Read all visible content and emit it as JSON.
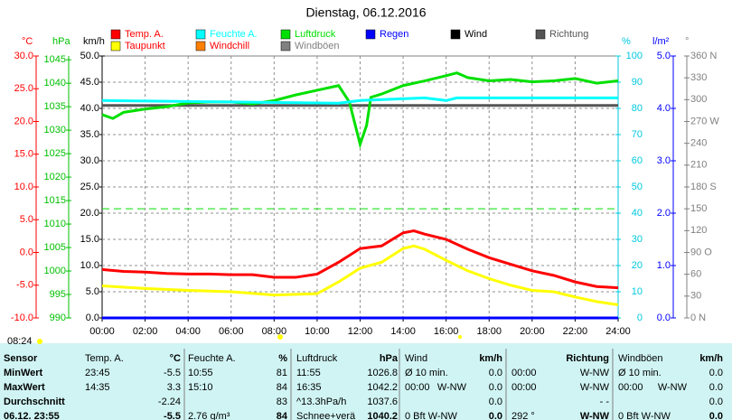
{
  "chart_data": {
    "type": "line",
    "title": "Dienstag, 06.12.2016",
    "xlim": [
      0,
      24
    ],
    "xticks": [
      {
        "value": 0,
        "label": "00:00"
      },
      {
        "value": 2,
        "label": "02:00"
      },
      {
        "value": 4,
        "label": "04:00"
      },
      {
        "value": 6,
        "label": "06:00"
      },
      {
        "value": 8,
        "label": "08:00"
      },
      {
        "value": 10,
        "label": "10:00"
      },
      {
        "value": 12,
        "label": "12:00"
      },
      {
        "value": 14,
        "label": "14:00"
      },
      {
        "value": 16,
        "label": "16:00"
      },
      {
        "value": 18,
        "label": "18:00"
      },
      {
        "value": 20,
        "label": "20:00"
      },
      {
        "value": 22,
        "label": "22:00"
      },
      {
        "value": 24,
        "label": "24:00"
      }
    ],
    "grid": true,
    "axes": [
      {
        "label": "°C",
        "color": "#ff0000",
        "lim": [
          -10,
          30
        ],
        "ticks": [
          {
            "value": 30,
            "label": "30.0"
          },
          {
            "value": 25,
            "label": "25.0"
          },
          {
            "value": 20,
            "label": "20.0"
          },
          {
            "value": 15,
            "label": "15.0"
          },
          {
            "value": 10,
            "label": "10.0"
          },
          {
            "value": 5,
            "label": "5.0"
          },
          {
            "value": 0,
            "label": "0.0"
          },
          {
            "value": -5,
            "label": "-5.0"
          },
          {
            "value": -10,
            "label": "-10.0"
          }
        ]
      },
      {
        "label": "hPa",
        "color": "#00c000",
        "lim": [
          990,
          1045.8
        ],
        "ticks": [
          1045,
          1040,
          1035,
          1030,
          1025,
          1020,
          1015,
          1010,
          1005,
          1000,
          995,
          990
        ]
      },
      {
        "label": "km/h",
        "color": "#000000",
        "lim": [
          0,
          50
        ],
        "ticks": [
          {
            "value": 50,
            "label": "50.0"
          },
          {
            "value": 45,
            "label": "45.0"
          },
          {
            "value": 40,
            "label": "40.0"
          },
          {
            "value": 35,
            "label": "35.0"
          },
          {
            "value": 30,
            "label": "30.0"
          },
          {
            "value": 25,
            "label": "25.0"
          },
          {
            "value": 20,
            "label": "20.0"
          },
          {
            "value": 15,
            "label": "15.0"
          },
          {
            "value": 10,
            "label": "10.0"
          },
          {
            "value": 5,
            "label": "5.0"
          },
          {
            "value": 0,
            "label": "0.0"
          }
        ]
      },
      {
        "label": "%",
        "color": "#00c8e0",
        "lim": [
          0,
          100
        ],
        "ticks": [
          100,
          90,
          80,
          70,
          60,
          50,
          40,
          30,
          20,
          10,
          0
        ]
      },
      {
        "label": "l/m²",
        "color": "#0000ff",
        "lim": [
          0,
          5
        ],
        "ticks": [
          {
            "value": 5,
            "label": "5.0"
          },
          {
            "value": 4,
            "label": "4.0"
          },
          {
            "value": 3,
            "label": "3.0"
          },
          {
            "value": 2,
            "label": "2.0"
          },
          {
            "value": 1,
            "label": "1.0"
          },
          {
            "value": 0,
            "label": "0.0"
          }
        ]
      },
      {
        "label": "°",
        "color": "#808080",
        "lim": [
          0,
          360
        ],
        "ticks": [
          {
            "value": 360,
            "label": "360 N"
          },
          330,
          300,
          {
            "value": 270,
            "label": "270 W"
          },
          240,
          210,
          {
            "value": 180,
            "label": "180 S"
          },
          150,
          120,
          {
            "value": 90,
            "label": "90 O"
          },
          60,
          30,
          {
            "value": 0,
            "label": "0 N"
          }
        ]
      }
    ],
    "pressure_reference": 1013.25,
    "series": [
      {
        "name": "Temp. A.",
        "color": "#ff0000",
        "axis": "°C",
        "x": [
          0,
          1,
          2,
          3,
          4,
          5,
          6,
          7,
          8,
          9,
          10,
          11,
          12,
          13,
          14,
          14.5,
          15,
          16,
          17,
          18,
          19,
          20,
          21,
          22,
          23,
          24
        ],
        "values": [
          -2.6,
          -2.9,
          -3.0,
          -3.2,
          -3.3,
          -3.3,
          -3.4,
          -3.4,
          -3.8,
          -3.8,
          -3.3,
          -1.5,
          0.6,
          1.0,
          3.0,
          3.3,
          2.8,
          2.0,
          0.5,
          -0.8,
          -1.8,
          -2.8,
          -3.5,
          -4.5,
          -5.2,
          -5.4
        ]
      },
      {
        "name": "Feuchte A.",
        "color": "#00ffff",
        "axis": "%",
        "x": [
          0,
          11,
          12,
          15,
          16,
          16.5,
          24
        ],
        "values": [
          83,
          82,
          83,
          84,
          83,
          84,
          84
        ]
      },
      {
        "name": "Luftdruck",
        "color": "#00e000",
        "axis": "hPa",
        "x": [
          0,
          0.5,
          1,
          2,
          3,
          4,
          5,
          6,
          7,
          8,
          9,
          10,
          11,
          11.5,
          12,
          12.3,
          12.5,
          13,
          14,
          15,
          16,
          16.5,
          17,
          18,
          19,
          20,
          21,
          22,
          23,
          24
        ],
        "values": [
          1033.3,
          1032.5,
          1033.8,
          1034.5,
          1035,
          1035.8,
          1036,
          1036,
          1035.6,
          1036.3,
          1037.5,
          1038.5,
          1039.5,
          1036,
          1027,
          1031,
          1037,
          1037.7,
          1039.5,
          1040.5,
          1041.6,
          1042.2,
          1041.2,
          1040.5,
          1040.8,
          1040.3,
          1040.5,
          1041,
          1040,
          1040.5
        ]
      },
      {
        "name": "Regen",
        "color": "#0000ff",
        "axis": "l/m²",
        "x": [
          0,
          24
        ],
        "values": [
          0,
          0
        ]
      },
      {
        "name": "Wind",
        "color": "#000000",
        "axis": "km/h",
        "x": [
          0,
          24
        ],
        "values": [
          0,
          0
        ]
      },
      {
        "name": "Richtung",
        "color": "#555555",
        "axis": "°",
        "x": [
          0,
          24
        ],
        "values": [
          292,
          292
        ]
      },
      {
        "name": "Taupunkt",
        "color": "#ffff00",
        "axis": "°C",
        "x": [
          0,
          2,
          4,
          6,
          8,
          10,
          11,
          12,
          13,
          14,
          14.5,
          15,
          16,
          17,
          18,
          19,
          20,
          21,
          22,
          23,
          24
        ],
        "values": [
          -5.1,
          -5.5,
          -5.8,
          -6.0,
          -6.5,
          -6.3,
          -4.5,
          -2.4,
          -1.5,
          0.6,
          1.0,
          0.5,
          -1.2,
          -2.8,
          -4.0,
          -5.0,
          -5.8,
          -6.0,
          -6.8,
          -7.5,
          -8.0
        ]
      },
      {
        "name": "Windchill",
        "color": "#ff8000",
        "axis": "°C"
      },
      {
        "name": "Windböen",
        "color": "#808080",
        "axis": "km/h",
        "x": [
          0,
          24
        ],
        "values": [
          0,
          0
        ]
      }
    ],
    "sunrise_label": "08:24"
  },
  "table": {
    "columns": [
      [
        "Sensor"
      ],
      [
        "Temp. A.",
        "°C"
      ],
      [
        "Feuchte A.",
        "%"
      ],
      [
        "Luftdruck",
        "hPa"
      ],
      [
        "Wind",
        "km/h"
      ],
      [
        "Richtung"
      ],
      [
        "Windböen",
        "km/h"
      ]
    ],
    "rows": [
      [
        [
          "MinWert"
        ],
        [
          "23:45",
          "-5.5"
        ],
        [
          "10:55",
          "81"
        ],
        [
          "11:55",
          "1026.8"
        ],
        [
          "Ø 10 min.",
          "0.0"
        ],
        [
          "00:00",
          "W-NW"
        ],
        [
          "Ø 10 min.",
          "0.0"
        ]
      ],
      [
        [
          "MaxWert"
        ],
        [
          "14:35",
          "3.3"
        ],
        [
          "15:10",
          "84"
        ],
        [
          "16:35",
          "1042.2"
        ],
        [
          "00:00",
          "W-NW",
          "0.0"
        ],
        [
          "00:00",
          "W-NW"
        ],
        [
          "00:00",
          "W-NW",
          "0.0"
        ]
      ],
      [
        [
          "Durchschnitt"
        ],
        [
          "-2.24"
        ],
        [
          "83"
        ],
        [
          "^13.3hPa/h",
          "1037.6"
        ],
        [
          "0.0"
        ],
        [
          "- -"
        ],
        [
          "0.0"
        ]
      ],
      [
        [
          "06.12. 23:55"
        ],
        [
          "-5.5"
        ],
        [
          "2.76 g/m³",
          "84"
        ],
        [
          "Schnee+verä",
          "1040.2"
        ],
        [
          "0 Bft W-NW",
          "0.0"
        ],
        [
          "292 °",
          "W-NW"
        ],
        [
          "0 Bft W-NW",
          "0.0"
        ]
      ]
    ]
  }
}
